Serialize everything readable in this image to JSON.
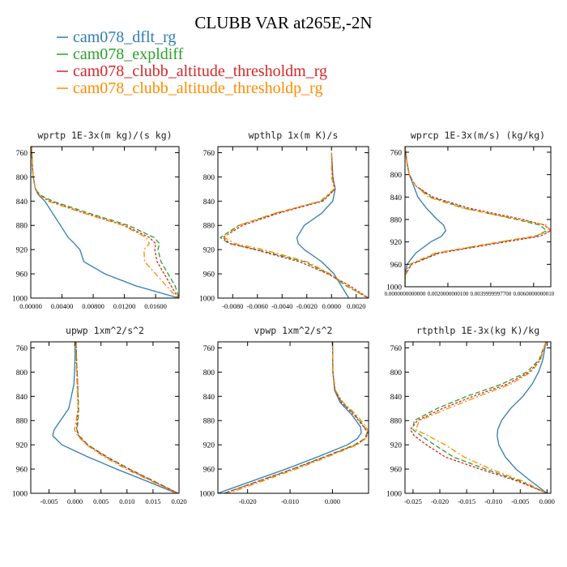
{
  "figure": {
    "title": "CLUBB VAR at265E,-2N",
    "legend": [
      {
        "label": "cam078_dflt_rg",
        "color": "#2f7db3"
      },
      {
        "label": "cam078_expldiff",
        "color": "#2ca02c"
      },
      {
        "label": "cam078_clubb_altitude_thresholdm_rg",
        "color": "#d62728"
      },
      {
        "label": "cam078_clubb_altitude_thresholdp_rg",
        "color": "#ff8c00"
      }
    ]
  },
  "chart_data": [
    {
      "type": "line",
      "title": "wprtp  1E-3x(m kg)/(s kg)",
      "xlim": [
        0,
        0.019
      ],
      "ylim": [
        1000,
        750
      ],
      "yticks": [
        760,
        800,
        840,
        880,
        920,
        960,
        1000
      ],
      "xticks": [
        0.0,
        0.004,
        0.008,
        0.012,
        0.016
      ],
      "xticklabels": [
        "0.00000",
        "0.00400",
        "0.00800",
        "0.01200",
        "0.01600"
      ],
      "y": [
        750,
        780,
        800,
        820,
        830,
        840,
        860,
        880,
        900,
        910,
        920,
        940,
        960,
        980,
        1000
      ],
      "series": [
        {
          "name": "cam078_dflt_rg",
          "values": [
            0.0001,
            0.0002,
            0.0003,
            0.0006,
            0.001,
            0.0018,
            0.0028,
            0.0038,
            0.0048,
            0.0056,
            0.0063,
            0.0068,
            0.0095,
            0.0135,
            0.019
          ]
        },
        {
          "name": "cam078_expldiff",
          "values": [
            0.0001,
            0.0002,
            0.0003,
            0.0006,
            0.0012,
            0.0028,
            0.0075,
            0.0125,
            0.0158,
            0.0165,
            0.0163,
            0.0167,
            0.0176,
            0.0185,
            0.019
          ]
        },
        {
          "name": "cam078_clubb_altitude_thresholdm_rg",
          "values": [
            0.0001,
            0.0002,
            0.0003,
            0.0006,
            0.0011,
            0.0024,
            0.007,
            0.012,
            0.0152,
            0.016,
            0.0159,
            0.0162,
            0.0171,
            0.018,
            0.0189
          ]
        },
        {
          "name": "cam078_clubb_altitude_thresholdp_rg",
          "values": [
            0.0001,
            0.0002,
            0.0003,
            0.0006,
            0.0011,
            0.0022,
            0.0068,
            0.0118,
            0.0148,
            0.0152,
            0.0145,
            0.0146,
            0.016,
            0.0174,
            0.0188
          ]
        }
      ]
    },
    {
      "type": "line",
      "title": "wpthlp  1x(m K)/s",
      "xlim": [
        -0.0092,
        0.003
      ],
      "ylim": [
        1000,
        750
      ],
      "yticks": [
        760,
        800,
        840,
        880,
        920,
        960,
        1000
      ],
      "xticks": [
        -0.008,
        -0.006,
        -0.004,
        -0.002,
        0.0,
        0.002
      ],
      "xticklabels": [
        "-0.0080",
        "-0.0060",
        "-0.0040",
        "-0.0020",
        "0.0000",
        "0.0020"
      ],
      "y": [
        760,
        800,
        820,
        840,
        860,
        880,
        900,
        910,
        920,
        940,
        960,
        980,
        1000
      ],
      "series": [
        {
          "name": "cam078_dflt_rg",
          "values": [
            0.0,
            0.0001,
            0.0003,
            0.0001,
            -0.0008,
            -0.0022,
            -0.0028,
            -0.0027,
            -0.0022,
            -0.0008,
            0.0002,
            0.0008,
            0.0014
          ]
        },
        {
          "name": "cam078_expldiff",
          "values": [
            0.0,
            0.0001,
            0.0003,
            -0.0008,
            -0.0045,
            -0.0075,
            -0.009,
            -0.0083,
            -0.006,
            -0.0022,
            -0.0002,
            0.0012,
            0.003
          ]
        },
        {
          "name": "cam078_clubb_altitude_thresholdm_rg",
          "values": [
            0.0,
            0.0001,
            0.0003,
            -0.0007,
            -0.0043,
            -0.0072,
            -0.0088,
            -0.0082,
            -0.0062,
            -0.0026,
            -0.0003,
            0.0015,
            0.003
          ]
        },
        {
          "name": "cam078_clubb_altitude_thresholdp_rg",
          "values": [
            0.0,
            0.0,
            0.0002,
            -0.0009,
            -0.0046,
            -0.0075,
            -0.0087,
            -0.0078,
            -0.0055,
            -0.002,
            -0.0001,
            0.0013,
            0.0029
          ]
        }
      ]
    },
    {
      "type": "line",
      "title": "wprcp  1E-3x(m/s) (kg/kg)",
      "xlim": [
        0,
        0.0068
      ],
      "ylim": [
        1000,
        750
      ],
      "yticks": [
        760,
        800,
        840,
        880,
        920,
        960,
        1000
      ],
      "xticks": [
        0.0,
        0.002,
        0.004,
        0.006
      ],
      "xticklabels": [
        "0.0000000000000",
        "0.0020000000100",
        "0.0039999997700",
        "0.0060000000010"
      ],
      "y": [
        750,
        780,
        800,
        820,
        840,
        860,
        880,
        890,
        900,
        910,
        920,
        940,
        960,
        980,
        1000
      ],
      "series": [
        {
          "name": "cam078_dflt_rg",
          "values": [
            0.0,
            0.0001,
            0.0002,
            0.0004,
            0.0006,
            0.001,
            0.0015,
            0.0018,
            0.0019,
            0.0017,
            0.0012,
            0.0005,
            0.0001,
            0.0,
            0.0
          ]
        },
        {
          "name": "cam078_expldiff",
          "values": [
            0.0,
            0.0001,
            0.0002,
            0.0005,
            0.0012,
            0.0028,
            0.0052,
            0.0063,
            0.0066,
            0.0061,
            0.0045,
            0.0015,
            0.0003,
            0.0,
            0.0
          ]
        },
        {
          "name": "cam078_clubb_altitude_thresholdm_rg",
          "values": [
            0.0,
            0.0001,
            0.0002,
            0.0005,
            0.0013,
            0.003,
            0.0055,
            0.0065,
            0.0068,
            0.0063,
            0.0047,
            0.0016,
            0.0003,
            0.0,
            0.0
          ]
        },
        {
          "name": "cam078_clubb_altitude_thresholdp_rg",
          "values": [
            0.0,
            0.0001,
            0.0002,
            0.0005,
            0.0011,
            0.0027,
            0.0053,
            0.0066,
            0.0068,
            0.006,
            0.0044,
            0.0014,
            0.0002,
            0.0,
            0.0
          ]
        }
      ]
    },
    {
      "type": "line",
      "title": "upwp  1xm^2/s^2",
      "xlim": [
        -0.0085,
        0.02
      ],
      "ylim": [
        1000,
        750
      ],
      "yticks": [
        760,
        800,
        840,
        880,
        920,
        960,
        1000
      ],
      "xticks": [
        -0.005,
        0.0,
        0.005,
        0.01,
        0.015,
        0.02
      ],
      "xticklabels": [
        "-0.005",
        "0.000",
        "0.005",
        "0.010",
        "0.015",
        "0.020"
      ],
      "y": [
        750,
        780,
        820,
        860,
        880,
        895,
        905,
        920,
        940,
        960,
        980,
        1000
      ],
      "series": [
        {
          "name": "cam078_dflt_rg",
          "values": [
            0.0,
            0.0,
            -0.0002,
            -0.0012,
            -0.0028,
            -0.004,
            -0.0043,
            -0.0025,
            0.0025,
            0.008,
            0.0138,
            0.0195
          ]
        },
        {
          "name": "cam078_expldiff",
          "values": [
            0.0002,
            0.0003,
            0.0005,
            0.0007,
            0.0006,
            0.0004,
            0.0008,
            0.0025,
            0.0062,
            0.0105,
            0.0152,
            0.0198
          ]
        },
        {
          "name": "cam078_clubb_altitude_thresholdm_rg",
          "values": [
            0.0002,
            0.0003,
            0.0005,
            0.0006,
            0.0004,
            0.0003,
            0.0007,
            0.0024,
            0.006,
            0.0103,
            0.015,
            0.0198
          ]
        },
        {
          "name": "cam078_clubb_altitude_thresholdp_rg",
          "values": [
            0.0001,
            0.0002,
            0.0004,
            0.0006,
            0.0002,
            -0.0001,
            0.0005,
            0.0022,
            0.0056,
            0.0098,
            0.0147,
            0.0195
          ]
        }
      ]
    },
    {
      "type": "line",
      "title": "vpwp  1xm^2/s^2",
      "xlim": [
        -0.027,
        0.0085
      ],
      "ylim": [
        1000,
        750
      ],
      "yticks": [
        760,
        800,
        840,
        880,
        920,
        960,
        1000
      ],
      "xticks": [
        -0.02,
        -0.01,
        0.0
      ],
      "xticklabels": [
        "-0.020",
        "-0.010",
        "0.000"
      ],
      "y": [
        750,
        800,
        830,
        850,
        870,
        890,
        900,
        910,
        920,
        940,
        960,
        980,
        1000
      ],
      "series": [
        {
          "name": "cam078_dflt_rg",
          "values": [
            0.0,
            0.0001,
            0.0005,
            0.0018,
            0.0045,
            0.0066,
            0.0068,
            0.0058,
            0.0035,
            -0.0035,
            -0.011,
            -0.019,
            -0.027
          ]
        },
        {
          "name": "cam078_expldiff",
          "values": [
            0.0,
            0.0001,
            0.0006,
            0.0022,
            0.0052,
            0.0075,
            0.0082,
            0.0075,
            0.0052,
            -0.002,
            -0.0095,
            -0.0175,
            -0.0255
          ]
        },
        {
          "name": "cam078_clubb_altitude_thresholdm_rg",
          "values": [
            0.0,
            0.0001,
            0.0006,
            0.0021,
            0.005,
            0.0073,
            0.0083,
            0.0078,
            0.0055,
            -0.0018,
            -0.0093,
            -0.0173,
            -0.0255
          ]
        },
        {
          "name": "cam078_clubb_altitude_thresholdp_rg",
          "values": [
            0.0,
            0.0001,
            0.0007,
            0.0025,
            0.0056,
            0.0079,
            0.0085,
            0.0077,
            0.0058,
            -0.0012,
            -0.0085,
            -0.0165,
            -0.0245
          ]
        }
      ]
    },
    {
      "type": "line",
      "title": "rtpthlp  1E-3x(kg K)/kg",
      "xlim": [
        -0.0265,
        0.0007
      ],
      "ylim": [
        1000,
        750
      ],
      "yticks": [
        760,
        800,
        840,
        880,
        920,
        960,
        1000
      ],
      "xticks": [
        -0.025,
        -0.02,
        -0.015,
        -0.01,
        -0.005,
        0.0
      ],
      "xticklabels": [
        "-0.025",
        "-0.020",
        "-0.015",
        "-0.010",
        "-0.005",
        "0.000"
      ],
      "y": [
        750,
        780,
        800,
        820,
        840,
        860,
        880,
        895,
        905,
        920,
        940,
        960,
        980,
        1000
      ],
      "series": [
        {
          "name": "cam078_dflt_rg",
          "values": [
            -0.0002,
            -0.0008,
            -0.0016,
            -0.0028,
            -0.0045,
            -0.0068,
            -0.0085,
            -0.0092,
            -0.0093,
            -0.009,
            -0.0078,
            -0.0058,
            -0.003,
            0.0
          ]
        },
        {
          "name": "cam078_expldiff",
          "values": [
            -0.0002,
            -0.0015,
            -0.0038,
            -0.0085,
            -0.015,
            -0.0205,
            -0.0248,
            -0.025,
            -0.0235,
            -0.021,
            -0.0175,
            -0.0115,
            -0.005,
            0.0
          ]
        },
        {
          "name": "cam078_clubb_altitude_thresholdm_rg",
          "values": [
            -0.0002,
            -0.0013,
            -0.0033,
            -0.0075,
            -0.0138,
            -0.0195,
            -0.0242,
            -0.0255,
            -0.0248,
            -0.0225,
            -0.019,
            -0.0125,
            -0.0055,
            0.0
          ]
        },
        {
          "name": "cam078_clubb_altitude_thresholdp_rg",
          "values": [
            -0.0002,
            -0.0012,
            -0.003,
            -0.0068,
            -0.0128,
            -0.0185,
            -0.0238,
            -0.0245,
            -0.0222,
            -0.019,
            -0.0155,
            -0.0105,
            -0.0045,
            0.0
          ]
        }
      ]
    }
  ]
}
